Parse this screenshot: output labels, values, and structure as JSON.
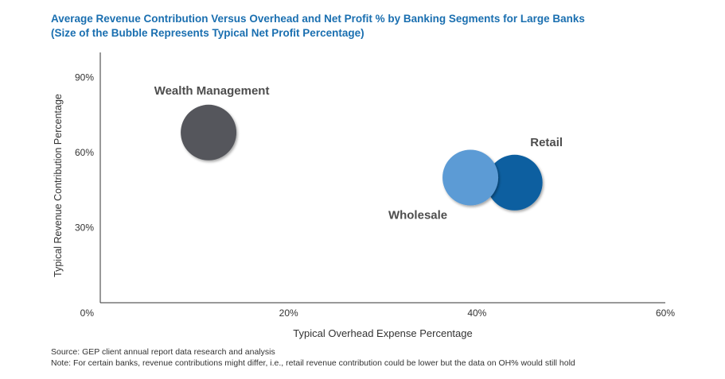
{
  "title": {
    "line1": "Average Revenue Contribution Versus Overhead and Net Profit % by Banking Segments for Large Banks",
    "line2": "(Size of the Bubble Represents Typical Net Profit Percentage)"
  },
  "chart_data": {
    "type": "scatter",
    "xlabel": "Typical Overhead Expense Percentage",
    "ylabel": "Typical Revenue Contribution Percentage",
    "xlim": [
      0,
      60
    ],
    "ylim": [
      0,
      100
    ],
    "x_ticks": [
      0,
      20,
      40,
      60
    ],
    "x_tick_labels": [
      "0%",
      "20%",
      "40%",
      "60%"
    ],
    "y_ticks": [
      30,
      60,
      90
    ],
    "y_tick_labels": [
      "30%",
      "60%",
      "90%"
    ],
    "grid": false,
    "legend": "none",
    "series": [
      {
        "name": "Wealth Management",
        "x": 11.5,
        "y": 68,
        "color": "#54565b"
      },
      {
        "name": "Retail",
        "x": 44,
        "y": 48,
        "color": "#0a5fa0"
      },
      {
        "name": "Wholesale",
        "x": 39.3,
        "y": 50,
        "color": "#5b9bd5"
      }
    ]
  },
  "footer": {
    "source": "Source: GEP client annual report data research and analysis",
    "note": "Note: For certain banks, revenue contributions might differ, i.e., retail revenue contribution could be lower but the data on OH% would still hold"
  }
}
